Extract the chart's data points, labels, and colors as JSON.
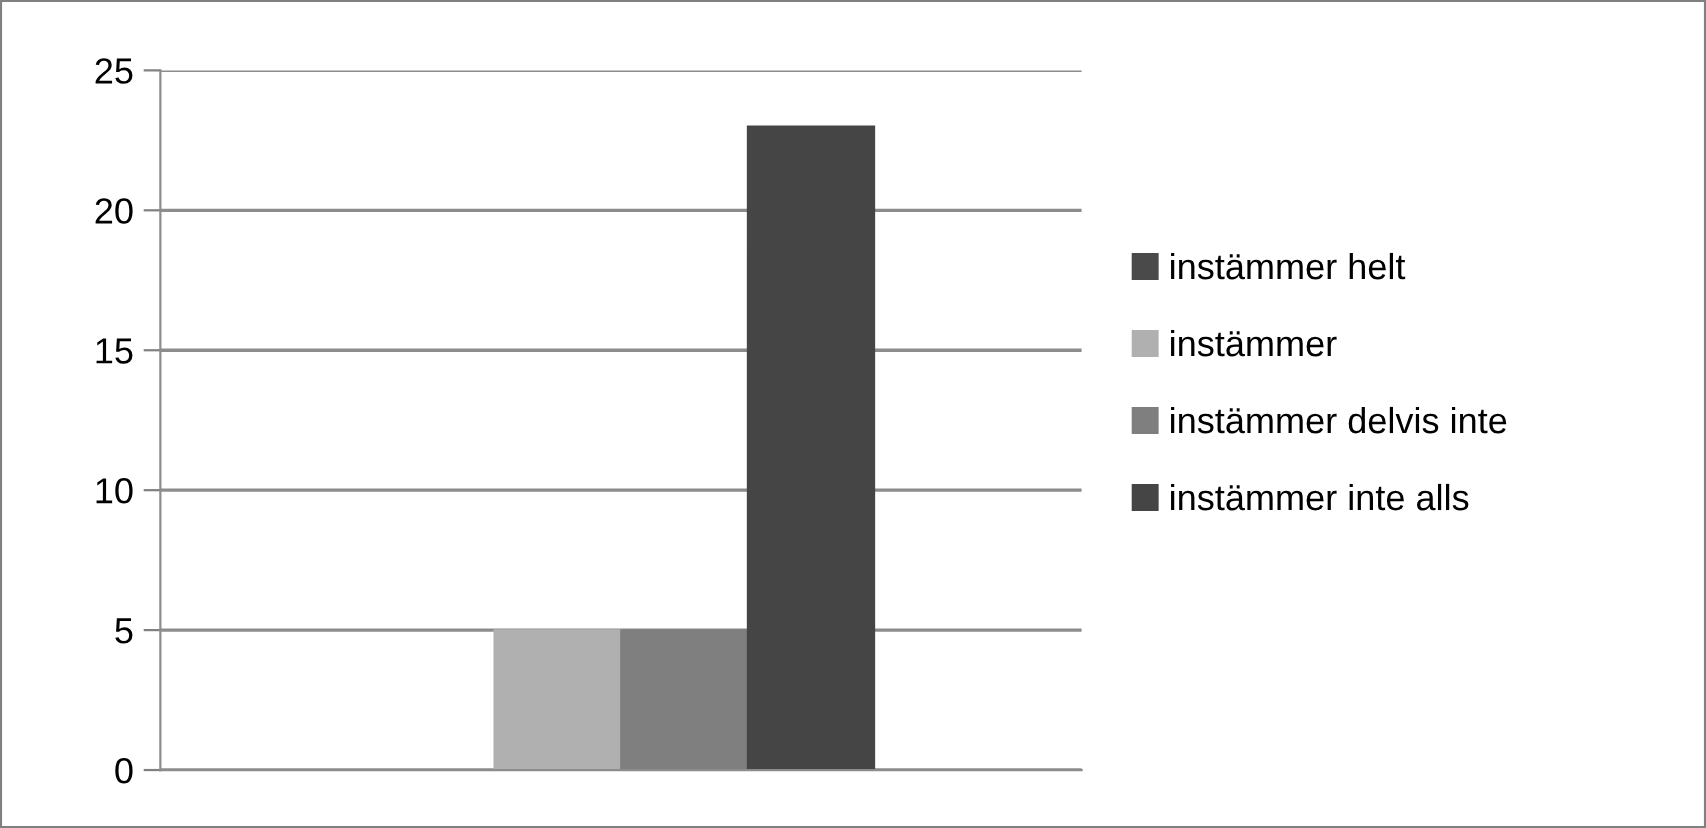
{
  "chart_data": {
    "type": "bar",
    "categories": [
      null
    ],
    "series": [
      {
        "name": "instämmer helt",
        "color": "#4a4a4a",
        "values": [
          0
        ]
      },
      {
        "name": "instämmer",
        "color": "#b0b0b0",
        "values": [
          5
        ]
      },
      {
        "name": "instämmer delvis inte",
        "color": "#7f7f7f",
        "values": [
          5
        ]
      },
      {
        "name": "instämmer inte alls",
        "color": "#454545",
        "values": [
          23
        ]
      }
    ],
    "ylim": [
      0,
      25
    ],
    "yticks": [
      0,
      5,
      10,
      15,
      20,
      25
    ],
    "grid": "y",
    "legend": "right"
  }
}
